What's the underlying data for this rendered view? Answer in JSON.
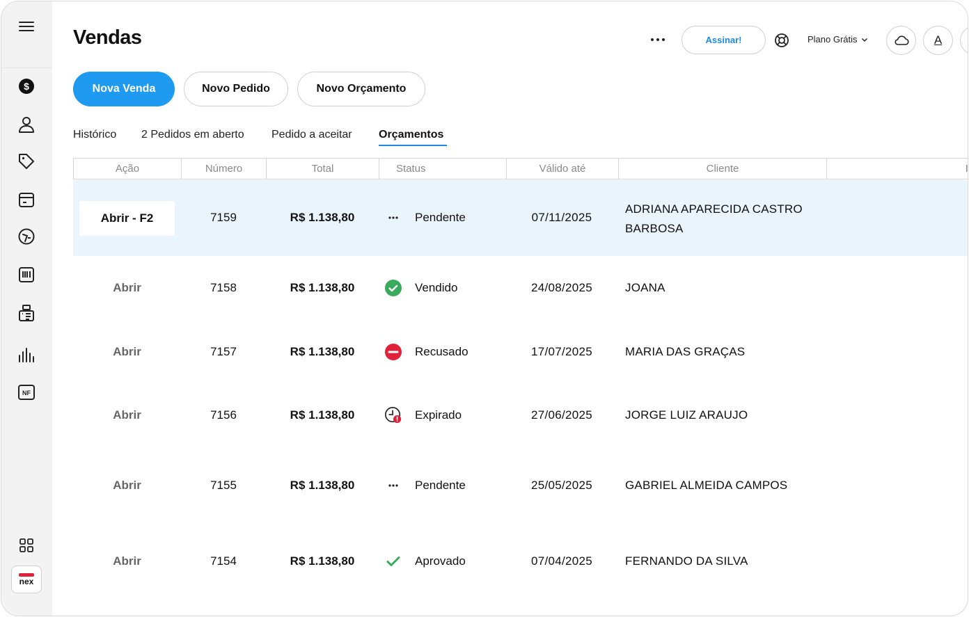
{
  "header": {
    "title": "Vendas",
    "subscribe_label": "Assinar!",
    "plan_label": "Plano Grátis",
    "font_label": "A"
  },
  "actions": {
    "nova_venda": "Nova Venda",
    "novo_pedido": "Novo Pedido",
    "novo_orcamento": "Novo Orçamento"
  },
  "tabs": [
    {
      "label": "Histórico"
    },
    {
      "label": "2 Pedidos em aberto"
    },
    {
      "label": "Pedido a aceitar"
    },
    {
      "label": "Orçamentos",
      "active": true
    }
  ],
  "table": {
    "columns": [
      "Ação",
      "Número",
      "Total",
      "Status",
      "Válido até",
      "Cliente",
      "It"
    ],
    "rows": [
      {
        "action": "Abrir - F2",
        "number": "7159",
        "total": "R$ 1.138,80",
        "status": "Pendente",
        "status_icon": "pending-icon",
        "valid_until": "07/11/2025",
        "client": "ADRIANA APARECIDA CASTRO BARBOSA"
      },
      {
        "action": "Abrir",
        "number": "7158",
        "total": "R$ 1.138,80",
        "status": "Vendido",
        "status_icon": "check-circle-icon",
        "valid_until": "24/08/2025",
        "client": "JOANA"
      },
      {
        "action": "Abrir",
        "number": "7157",
        "total": "R$ 1.138,80",
        "status": "Recusado",
        "status_icon": "refused-icon",
        "valid_until": "17/07/2025",
        "client": "MARIA DAS GRAÇAS"
      },
      {
        "action": "Abrir",
        "number": "7156",
        "total": "R$ 1.138,80",
        "status": "Expirado",
        "status_icon": "expired-clock-icon",
        "valid_until": "27/06/2025",
        "client": "JORGE LUIZ ARAUJO"
      },
      {
        "action": "Abrir",
        "number": "7155",
        "total": "R$ 1.138,80",
        "status": "Pendente",
        "status_icon": "pending-icon",
        "valid_until": "25/05/2025",
        "client": "GABRIEL ALMEIDA CAMPOS"
      },
      {
        "action": "Abrir",
        "number": "7154",
        "total": "R$ 1.138,80",
        "status": "Aprovado",
        "status_icon": "check-icon",
        "valid_until": "07/04/2025",
        "client": "FERNANDO DA SILVA"
      }
    ]
  },
  "sidebar": {
    "logo_text": "nex",
    "items": [
      "menu-icon",
      "dollar-icon",
      "user-icon",
      "tag-icon",
      "calendar-icon",
      "speedometer-icon",
      "barcode-icon",
      "register-icon",
      "bar-chart-icon",
      "nf-icon",
      "apps-grid-icon"
    ]
  },
  "colors": {
    "primary": "#1e9bf0",
    "tab_underline": "#1e88e5",
    "selected_row": "#eaf4fd",
    "success": "#3aaa5c",
    "danger": "#e0213a"
  }
}
